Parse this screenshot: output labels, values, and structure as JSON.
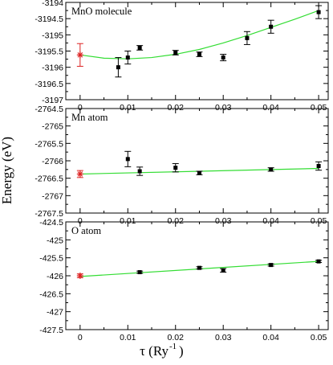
{
  "colors": {
    "fit_line": "#33dd33",
    "extrapolated": "#dd2222",
    "data": "#000000",
    "frame": "#000000"
  },
  "ylabel": "Energy (eV)",
  "xlabel": {
    "main": "τ (Ry",
    "sup": "-1",
    "close": ")"
  },
  "chart_data": [
    {
      "type": "scatter",
      "panel_label": "MnO molecule",
      "xlim": [
        -0.003,
        0.052
      ],
      "ylim": [
        -3197,
        -3194
      ],
      "xticks": [
        0,
        0.01,
        0.02,
        0.03,
        0.04,
        0.05
      ],
      "xtick_labels": [
        "0",
        "0.01",
        "0.02",
        "0.03",
        "0.04",
        "0.05"
      ],
      "yticks": [
        -3197,
        -3196.5,
        -3196,
        -3195.5,
        -3195,
        -3194.5,
        -3194
      ],
      "ytick_labels": [
        "-3197",
        "-3196.5",
        "-3196",
        "-3195.5",
        "-3195",
        "-3194.5",
        "-3194"
      ],
      "series": [
        {
          "kind": "points",
          "points": [
            {
              "x": 0.008,
              "y": -3196.0,
              "err": 0.3
            },
            {
              "x": 0.01,
              "y": -3195.7,
              "err": 0.2
            },
            {
              "x": 0.0125,
              "y": -3195.4,
              "err": 0.07
            },
            {
              "x": 0.02,
              "y": -3195.55,
              "err": 0.07
            },
            {
              "x": 0.025,
              "y": -3195.6,
              "err": 0.07
            },
            {
              "x": 0.03,
              "y": -3195.7,
              "err": 0.1
            },
            {
              "x": 0.035,
              "y": -3195.1,
              "err": 0.2
            },
            {
              "x": 0.04,
              "y": -3194.75,
              "err": 0.2
            },
            {
              "x": 0.05,
              "y": -3194.3,
              "err": 0.2
            }
          ]
        },
        {
          "kind": "extrapolated",
          "points": [
            {
              "x": 0,
              "y": -3195.62,
              "err": 0.35
            }
          ]
        },
        {
          "kind": "fit",
          "x": [
            0,
            0.005,
            0.01,
            0.015,
            0.02,
            0.025,
            0.03,
            0.035,
            0.04,
            0.045,
            0.05
          ],
          "y": [
            -3195.62,
            -3195.72,
            -3195.74,
            -3195.7,
            -3195.6,
            -3195.45,
            -3195.25,
            -3195.02,
            -3194.77,
            -3194.52,
            -3194.25
          ]
        }
      ]
    },
    {
      "type": "scatter",
      "panel_label": "Mn atom",
      "xlim": [
        -0.003,
        0.052
      ],
      "ylim": [
        -2767.5,
        -2764.5
      ],
      "xticks": [
        0,
        0.01,
        0.02,
        0.03,
        0.04,
        0.05
      ],
      "xtick_labels": [
        "0",
        "0.01",
        "0.02",
        "0.03",
        "0.04",
        "0.05"
      ],
      "yticks": [
        -2767.5,
        -2767,
        -2766.5,
        -2766,
        -2765.5,
        -2765,
        -2764.5
      ],
      "ytick_labels": [
        "-2767.5",
        "-2767",
        "-2766.5",
        "-2766",
        "-2765.5",
        "-2765",
        "-2764.5"
      ],
      "series": [
        {
          "kind": "points",
          "points": [
            {
              "x": 0.01,
              "y": -2765.95,
              "err": 0.22
            },
            {
              "x": 0.0125,
              "y": -2766.3,
              "err": 0.12
            },
            {
              "x": 0.02,
              "y": -2766.2,
              "err": 0.12
            },
            {
              "x": 0.025,
              "y": -2766.35,
              "err": 0.05
            },
            {
              "x": 0.04,
              "y": -2766.25,
              "err": 0.05
            },
            {
              "x": 0.05,
              "y": -2766.15,
              "err": 0.12
            }
          ]
        },
        {
          "kind": "extrapolated",
          "points": [
            {
              "x": 0,
              "y": -2766.38,
              "err": 0.1
            }
          ]
        },
        {
          "kind": "fit",
          "x": [
            0,
            0.05
          ],
          "y": [
            -2766.38,
            -2766.22
          ]
        }
      ]
    },
    {
      "type": "scatter",
      "panel_label": "O atom",
      "xlim": [
        -0.003,
        0.052
      ],
      "ylim": [
        -427.5,
        -424.5
      ],
      "xticks": [
        0,
        0.01,
        0.02,
        0.03,
        0.04,
        0.05
      ],
      "xtick_labels": [
        "0",
        "0.01",
        "0.02",
        "0.03",
        "0.04",
        "0.05"
      ],
      "yticks": [
        -427.5,
        -427,
        -426.5,
        -426,
        -425.5,
        -425,
        -424.5
      ],
      "ytick_labels": [
        "-427.5",
        "-427",
        "-426.5",
        "-426",
        "-425.5",
        "-425",
        "-424.5"
      ],
      "series": [
        {
          "kind": "points",
          "points": [
            {
              "x": 0.0125,
              "y": -425.9,
              "err": 0.03
            },
            {
              "x": 0.025,
              "y": -425.78,
              "err": 0.03
            },
            {
              "x": 0.03,
              "y": -425.85,
              "err": 0.05
            },
            {
              "x": 0.04,
              "y": -425.7,
              "err": 0.03
            },
            {
              "x": 0.05,
              "y": -425.6,
              "err": 0.03
            }
          ]
        },
        {
          "kind": "extrapolated",
          "points": [
            {
              "x": 0,
              "y": -426.0,
              "err": 0.05
            }
          ]
        },
        {
          "kind": "fit",
          "x": [
            0,
            0.05
          ],
          "y": [
            -426.02,
            -425.6
          ]
        }
      ]
    }
  ]
}
